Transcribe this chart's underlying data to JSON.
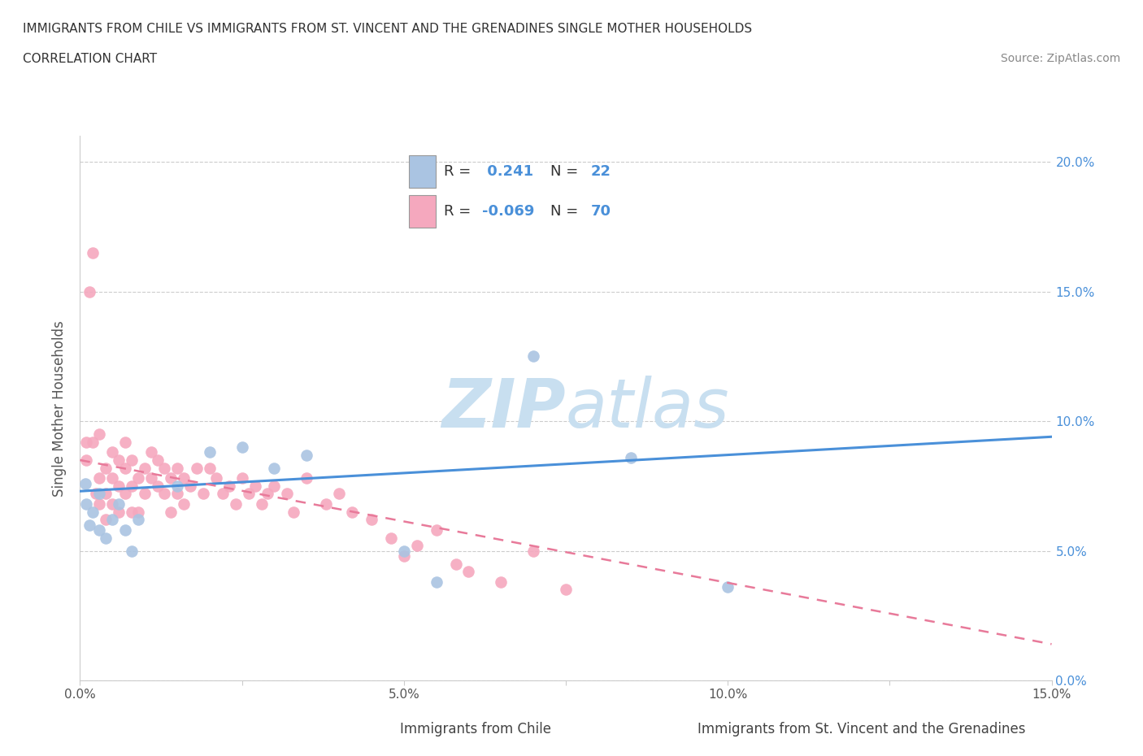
{
  "title_line1": "IMMIGRANTS FROM CHILE VS IMMIGRANTS FROM ST. VINCENT AND THE GRENADINES SINGLE MOTHER HOUSEHOLDS",
  "title_line2": "CORRELATION CHART",
  "source_text": "Source: ZipAtlas.com",
  "ylabel": "Single Mother Households",
  "xlim": [
    0.0,
    0.15
  ],
  "ylim": [
    0.0,
    0.21
  ],
  "xticks": [
    0.0,
    0.025,
    0.05,
    0.075,
    0.1,
    0.125,
    0.15
  ],
  "xtick_labels": [
    "0.0%",
    "",
    "5.0%",
    "",
    "10.0%",
    "",
    "15.0%"
  ],
  "yticks": [
    0.0,
    0.05,
    0.1,
    0.15,
    0.2
  ],
  "ytick_labels": [
    "0.0%",
    "5.0%",
    "10.0%",
    "15.0%",
    "20.0%"
  ],
  "chile_R": 0.241,
  "chile_N": 22,
  "stvincent_R": -0.069,
  "stvincent_N": 70,
  "chile_color": "#aac4e2",
  "stvincent_color": "#f5a8be",
  "chile_line_color": "#4a90d9",
  "stvincent_line_color": "#e87a9a",
  "watermark_color": "#c8dff0",
  "background_color": "#ffffff",
  "grid_color": "#cccccc",
  "tick_label_color": "#4a90d9",
  "title_color": "#333333",
  "source_color": "#888888",
  "ylabel_color": "#555555",
  "legend_text_color": "#333333",
  "legend_value_color": "#4a90d9",
  "chile_line_x0": 0.0,
  "chile_line_y0": 0.073,
  "chile_line_x1": 0.15,
  "chile_line_y1": 0.094,
  "sv_line_x0": 0.0,
  "sv_line_y0": 0.085,
  "sv_line_x1": 0.15,
  "sv_line_y1": 0.014,
  "chile_x": [
    0.0008,
    0.001,
    0.0015,
    0.002,
    0.003,
    0.003,
    0.004,
    0.005,
    0.006,
    0.007,
    0.008,
    0.009,
    0.015,
    0.02,
    0.025,
    0.03,
    0.035,
    0.05,
    0.055,
    0.07,
    0.085,
    0.1
  ],
  "chile_y": [
    0.076,
    0.068,
    0.06,
    0.065,
    0.058,
    0.072,
    0.055,
    0.062,
    0.068,
    0.058,
    0.05,
    0.062,
    0.075,
    0.088,
    0.09,
    0.082,
    0.087,
    0.05,
    0.038,
    0.125,
    0.086,
    0.036
  ],
  "sv_x": [
    0.001,
    0.001,
    0.0015,
    0.002,
    0.002,
    0.0025,
    0.003,
    0.003,
    0.003,
    0.004,
    0.004,
    0.004,
    0.005,
    0.005,
    0.005,
    0.006,
    0.006,
    0.006,
    0.007,
    0.007,
    0.007,
    0.008,
    0.008,
    0.008,
    0.009,
    0.009,
    0.01,
    0.01,
    0.011,
    0.011,
    0.012,
    0.012,
    0.013,
    0.013,
    0.014,
    0.014,
    0.015,
    0.015,
    0.016,
    0.016,
    0.017,
    0.018,
    0.019,
    0.02,
    0.021,
    0.022,
    0.023,
    0.024,
    0.025,
    0.026,
    0.027,
    0.028,
    0.029,
    0.03,
    0.032,
    0.033,
    0.035,
    0.038,
    0.04,
    0.042,
    0.045,
    0.048,
    0.05,
    0.052,
    0.055,
    0.058,
    0.06,
    0.065,
    0.07,
    0.075
  ],
  "sv_y": [
    0.085,
    0.092,
    0.15,
    0.165,
    0.092,
    0.072,
    0.068,
    0.078,
    0.095,
    0.072,
    0.082,
    0.062,
    0.078,
    0.088,
    0.068,
    0.075,
    0.085,
    0.065,
    0.072,
    0.082,
    0.092,
    0.075,
    0.085,
    0.065,
    0.078,
    0.065,
    0.082,
    0.072,
    0.078,
    0.088,
    0.075,
    0.085,
    0.072,
    0.082,
    0.078,
    0.065,
    0.082,
    0.072,
    0.078,
    0.068,
    0.075,
    0.082,
    0.072,
    0.082,
    0.078,
    0.072,
    0.075,
    0.068,
    0.078,
    0.072,
    0.075,
    0.068,
    0.072,
    0.075,
    0.072,
    0.065,
    0.078,
    0.068,
    0.072,
    0.065,
    0.062,
    0.055,
    0.048,
    0.052,
    0.058,
    0.045,
    0.042,
    0.038,
    0.05,
    0.035
  ]
}
